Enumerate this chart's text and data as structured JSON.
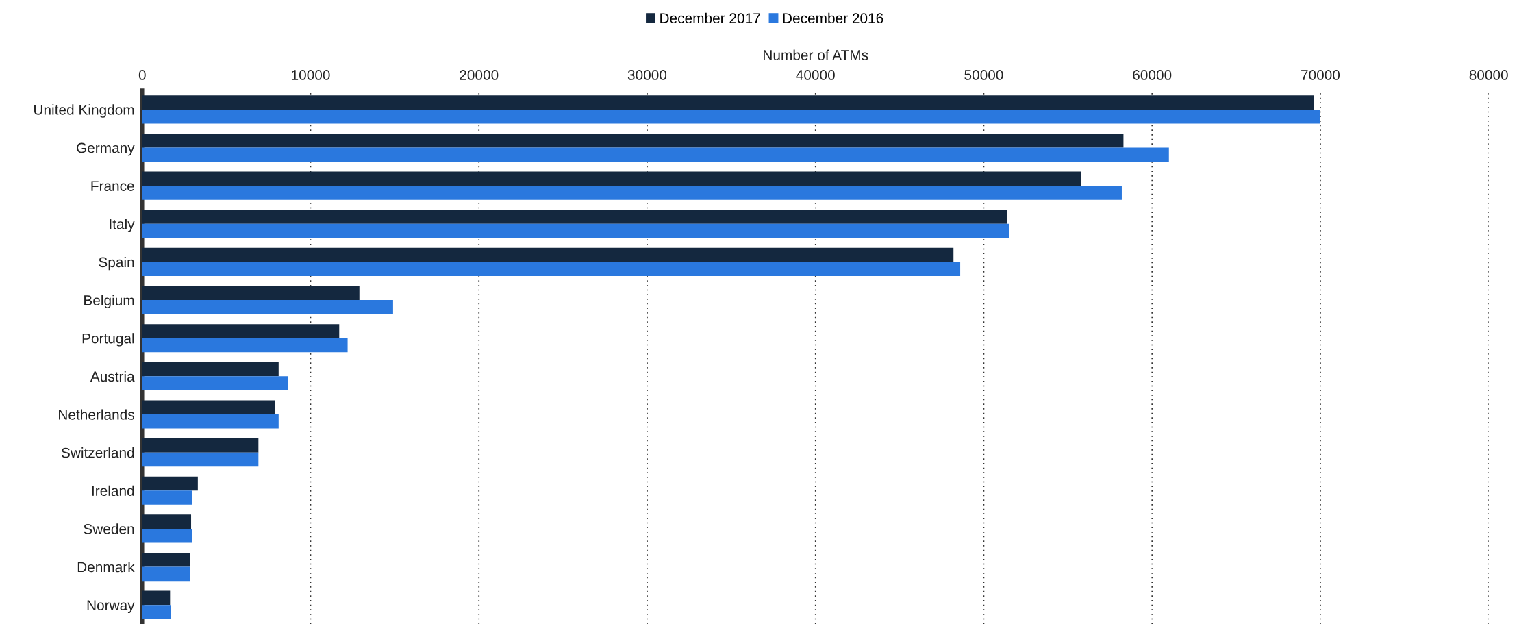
{
  "chart_data": {
    "type": "bar",
    "orientation": "horizontal",
    "xlabel": "Number of ATMs",
    "categories": [
      "United Kingdom",
      "Germany",
      "France",
      "Italy",
      "Spain",
      "Belgium",
      "Portugal",
      "Austria",
      "Netherlands",
      "Switzerland",
      "Ireland",
      "Sweden",
      "Denmark",
      "Norway"
    ],
    "series": [
      {
        "name": "December 2017",
        "color": "#14283f",
        "values": [
          69600,
          58300,
          55800,
          51400,
          48200,
          12900,
          11700,
          8100,
          7900,
          6900,
          3300,
          2900,
          2850,
          1650
        ]
      },
      {
        "name": "December 2016",
        "color": "#2a78de",
        "values": [
          70000,
          61000,
          58200,
          51500,
          48600,
          14900,
          12200,
          8650,
          8100,
          6900,
          2950,
          2950,
          2850,
          1700
        ]
      }
    ],
    "xlim": [
      0,
      80000
    ],
    "xticks": [
      0,
      10000,
      20000,
      30000,
      40000,
      50000,
      60000,
      70000,
      80000
    ],
    "grid": "x",
    "legend": "top"
  }
}
